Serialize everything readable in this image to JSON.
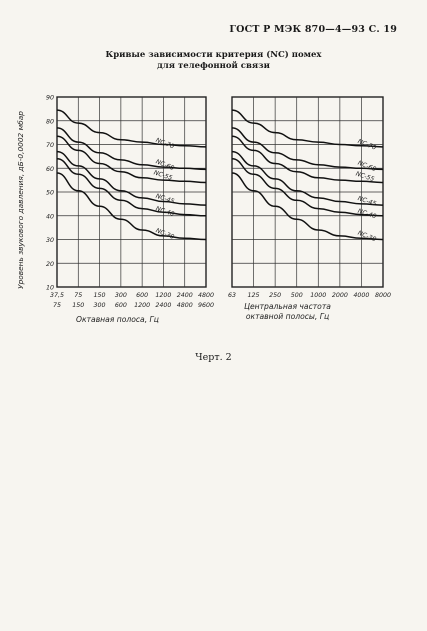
{
  "header": "ГОСТ Р МЭК 870—4—93 С. 19",
  "title": {
    "line1": "Кривые зависимости критерия (NC) помех",
    "line2": "для телефонной связи"
  },
  "caption": "Черт. 2",
  "chart_data": [
    {
      "type": "line",
      "title": "",
      "ylabel": "Уровень звукового давления, дБ-0,0002 мбар",
      "xlabel": "Октавная полоса, Гц",
      "ylim": [
        10,
        90
      ],
      "yticks": [
        "90",
        "80",
        "70",
        "60",
        "50",
        "40",
        "30",
        "20",
        "10"
      ],
      "x_ticks_row1": [
        "37,5",
        "75",
        "150",
        "300",
        "600",
        "1200",
        "2400",
        "4800"
      ],
      "x_ticks_row2": [
        "75",
        "150",
        "300",
        "600",
        "1200",
        "2400",
        "4800",
        "9600"
      ],
      "grid": true,
      "series": [
        {
          "name": "NC-70",
          "values": [
            84.5,
            79,
            75,
            72,
            71,
            70,
            69.5,
            69
          ]
        },
        {
          "name": "NC-60",
          "values": [
            77,
            71,
            66.5,
            63.5,
            61.5,
            60.5,
            60,
            59.5
          ]
        },
        {
          "name": "NC-55",
          "values": [
            73.5,
            67.5,
            62,
            58.5,
            56,
            55,
            54.5,
            54
          ]
        },
        {
          "name": "NC-45",
          "values": [
            67,
            61,
            55.5,
            50.5,
            47.5,
            46,
            45,
            44.5
          ]
        },
        {
          "name": "NC-40",
          "values": [
            64,
            57.5,
            51.5,
            46.5,
            43,
            41.5,
            40.5,
            40
          ]
        },
        {
          "name": "NC-30",
          "values": [
            58,
            50.5,
            44,
            38.5,
            34,
            31.5,
            30.5,
            30
          ]
        }
      ]
    },
    {
      "type": "line",
      "title": "",
      "xlabel": "Центральная частота октавной полосы, Гц",
      "ylim": [
        10,
        90
      ],
      "x_ticks": [
        "63",
        "125",
        "250",
        "500",
        "1000",
        "2000",
        "4000",
        "8000"
      ],
      "grid": true,
      "series": [
        {
          "name": "NC-70",
          "values": [
            84.5,
            79,
            75,
            72,
            71,
            70,
            69.5,
            69
          ]
        },
        {
          "name": "NC-60",
          "values": [
            77,
            71,
            66.5,
            63.5,
            61.5,
            60.5,
            60,
            59.5
          ]
        },
        {
          "name": "NC-55",
          "values": [
            73.5,
            67.5,
            62,
            58.5,
            56,
            55,
            54.5,
            54
          ]
        },
        {
          "name": "NC-45",
          "values": [
            67,
            61,
            55.5,
            50.5,
            47.5,
            46,
            45,
            44.5
          ]
        },
        {
          "name": "NC-40",
          "values": [
            64,
            57.5,
            51.5,
            46.5,
            43,
            41.5,
            40.5,
            40
          ]
        },
        {
          "name": "NC-30",
          "values": [
            58,
            50.5,
            44,
            38.5,
            34,
            31.5,
            30.5,
            30
          ]
        }
      ]
    }
  ]
}
